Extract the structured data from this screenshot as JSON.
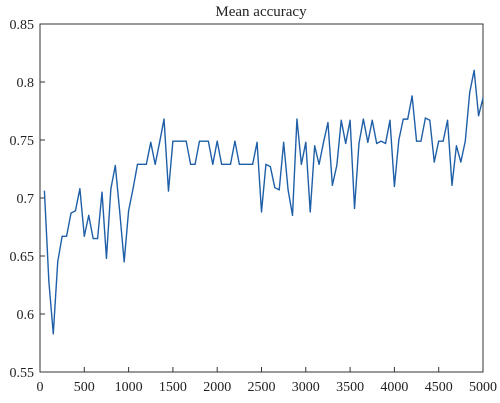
{
  "chart_data": {
    "type": "line",
    "title": "Mean accuracy",
    "xlabel": "",
    "ylabel": "",
    "xlim": [
      0,
      5000
    ],
    "ylim": [
      0.55,
      0.85
    ],
    "x_ticks": [
      0,
      500,
      1000,
      1500,
      2000,
      2500,
      3000,
      3500,
      4000,
      4500,
      5000
    ],
    "y_ticks": [
      0.55,
      0.6,
      0.65,
      0.7,
      0.75,
      0.8,
      0.85
    ],
    "x_tick_labels": [
      "0",
      "500",
      "1000",
      "1500",
      "2000",
      "2500",
      "3000",
      "3500",
      "4000",
      "4500",
      "5000"
    ],
    "y_tick_labels": [
      "0.55",
      "0.6",
      "0.65",
      "0.7",
      "0.75",
      "0.8",
      "0.85"
    ],
    "grid": false,
    "series": [
      {
        "color": "#1f5fa8",
        "x": [
          50,
          100,
          150,
          200,
          250,
          300,
          350,
          400,
          450,
          500,
          550,
          600,
          650,
          700,
          750,
          800,
          850,
          900,
          950,
          1000,
          1050,
          1100,
          1150,
          1200,
          1250,
          1300,
          1350,
          1400,
          1450,
          1500,
          1550,
          1600,
          1650,
          1700,
          1750,
          1800,
          1850,
          1900,
          1950,
          2000,
          2050,
          2100,
          2150,
          2200,
          2250,
          2300,
          2350,
          2400,
          2450,
          2500,
          2550,
          2600,
          2650,
          2700,
          2750,
          2800,
          2850,
          2900,
          2950,
          3000,
          3050,
          3100,
          3150,
          3200,
          3250,
          3300,
          3350,
          3400,
          3450,
          3500,
          3550,
          3600,
          3650,
          3700,
          3750,
          3800,
          3850,
          3900,
          3950,
          4000,
          4050,
          4100,
          4150,
          4200,
          4250,
          4300,
          4350,
          4400,
          4450,
          4500,
          4550,
          4600,
          4650,
          4700,
          4750,
          4800,
          4850,
          4900,
          4950,
          5000
        ],
        "values": [
          0.706,
          0.628,
          0.583,
          0.645,
          0.667,
          0.667,
          0.687,
          0.689,
          0.708,
          0.667,
          0.685,
          0.665,
          0.665,
          0.705,
          0.648,
          0.708,
          0.728,
          0.688,
          0.645,
          0.689,
          0.708,
          0.729,
          0.729,
          0.729,
          0.748,
          0.729,
          0.748,
          0.768,
          0.706,
          0.749,
          0.749,
          0.749,
          0.749,
          0.729,
          0.729,
          0.749,
          0.749,
          0.749,
          0.729,
          0.749,
          0.729,
          0.729,
          0.729,
          0.749,
          0.729,
          0.729,
          0.729,
          0.729,
          0.748,
          0.688,
          0.729,
          0.727,
          0.709,
          0.707,
          0.748,
          0.707,
          0.685,
          0.768,
          0.729,
          0.748,
          0.688,
          0.745,
          0.729,
          0.748,
          0.765,
          0.711,
          0.728,
          0.767,
          0.747,
          0.767,
          0.691,
          0.747,
          0.768,
          0.748,
          0.767,
          0.747,
          0.749,
          0.747,
          0.767,
          0.71,
          0.75,
          0.768,
          0.768,
          0.788,
          0.749,
          0.749,
          0.769,
          0.767,
          0.731,
          0.749,
          0.749,
          0.767,
          0.711,
          0.745,
          0.731,
          0.749,
          0.791,
          0.81,
          0.771,
          0.786
        ]
      }
    ]
  }
}
